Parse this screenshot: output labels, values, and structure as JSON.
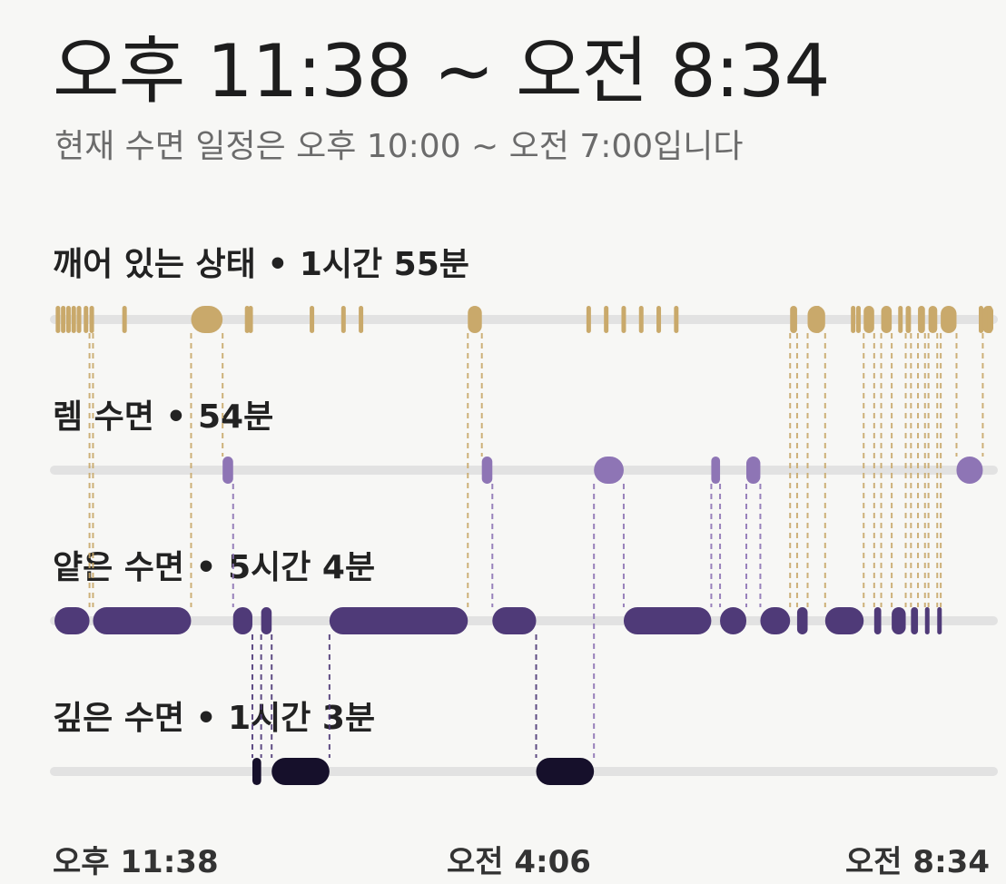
{
  "header": {
    "title": "오후 11:38 ~ 오전 8:34",
    "subtitle": "현재 수면 일정은 오후 10:00 ~ 오전 7:00입니다"
  },
  "stages": [
    {
      "key": "awake",
      "label": "깨어 있는 상태 • 1시간 55분",
      "color": "#c9a96b"
    },
    {
      "key": "rem",
      "label": "렘 수면 • 54분",
      "color": "#8e75b5"
    },
    {
      "key": "light",
      "label": "얕은 수면 • 5시간 4분",
      "color": "#4f3a78"
    },
    {
      "key": "deep",
      "label": "깊은 수면 • 1시간 3분",
      "color": "#16102b"
    }
  ],
  "time_axis": {
    "start": "오후 11:38",
    "middle": "오전 4:06",
    "end": "오전 8:34"
  },
  "chart_data": {
    "type": "hypnogram",
    "x_unit": "minutes after 11:38 PM",
    "x_range": [
      0,
      536
    ],
    "stages": [
      "깨어 있는 상태",
      "렘 수면",
      "얕은 수면",
      "깊은 수면"
    ],
    "segments": [
      {
        "stage": "light",
        "start": 0,
        "end": 20
      },
      {
        "stage": "awake",
        "start": 20,
        "end": 22
      },
      {
        "stage": "light",
        "start": 22,
        "end": 78
      },
      {
        "stage": "awake",
        "start": 78,
        "end": 96
      },
      {
        "stage": "rem",
        "start": 96,
        "end": 102
      },
      {
        "stage": "light",
        "start": 102,
        "end": 113
      },
      {
        "stage": "deep",
        "start": 113,
        "end": 118
      },
      {
        "stage": "light",
        "start": 118,
        "end": 124
      },
      {
        "stage": "deep",
        "start": 124,
        "end": 157
      },
      {
        "stage": "light",
        "start": 157,
        "end": 236
      },
      {
        "stage": "awake",
        "start": 236,
        "end": 244
      },
      {
        "stage": "rem",
        "start": 244,
        "end": 250
      },
      {
        "stage": "light",
        "start": 250,
        "end": 275
      },
      {
        "stage": "deep",
        "start": 275,
        "end": 308
      },
      {
        "stage": "rem",
        "start": 308,
        "end": 325
      },
      {
        "stage": "light",
        "start": 325,
        "end": 375
      },
      {
        "stage": "rem",
        "start": 375,
        "end": 380
      },
      {
        "stage": "light",
        "start": 380,
        "end": 395
      },
      {
        "stage": "rem",
        "start": 395,
        "end": 403
      },
      {
        "stage": "light",
        "start": 403,
        "end": 420
      },
      {
        "stage": "awake",
        "start": 420,
        "end": 424
      },
      {
        "stage": "light",
        "start": 424,
        "end": 430
      },
      {
        "stage": "awake",
        "start": 430,
        "end": 440
      },
      {
        "stage": "light",
        "start": 440,
        "end": 462
      },
      {
        "stage": "awake",
        "start": 462,
        "end": 468
      },
      {
        "stage": "light",
        "start": 468,
        "end": 472
      },
      {
        "stage": "awake",
        "start": 472,
        "end": 478
      },
      {
        "stage": "light",
        "start": 478,
        "end": 486
      },
      {
        "stage": "awake",
        "start": 486,
        "end": 489
      },
      {
        "stage": "light",
        "start": 489,
        "end": 493
      },
      {
        "stage": "awake",
        "start": 493,
        "end": 497
      },
      {
        "stage": "light",
        "start": 497,
        "end": 499
      },
      {
        "stage": "awake",
        "start": 499,
        "end": 504
      },
      {
        "stage": "light",
        "start": 504,
        "end": 506
      },
      {
        "stage": "awake",
        "start": 506,
        "end": 515
      },
      {
        "stage": "rem",
        "start": 515,
        "end": 530
      },
      {
        "stage": "awake",
        "start": 530,
        "end": 536
      }
    ],
    "awake_blips": [
      2,
      5,
      8,
      11,
      14,
      18,
      40,
      110,
      112,
      147,
      165,
      175,
      305,
      315,
      325,
      335,
      345,
      355,
      436,
      456,
      459,
      483,
      529,
      534
    ]
  }
}
